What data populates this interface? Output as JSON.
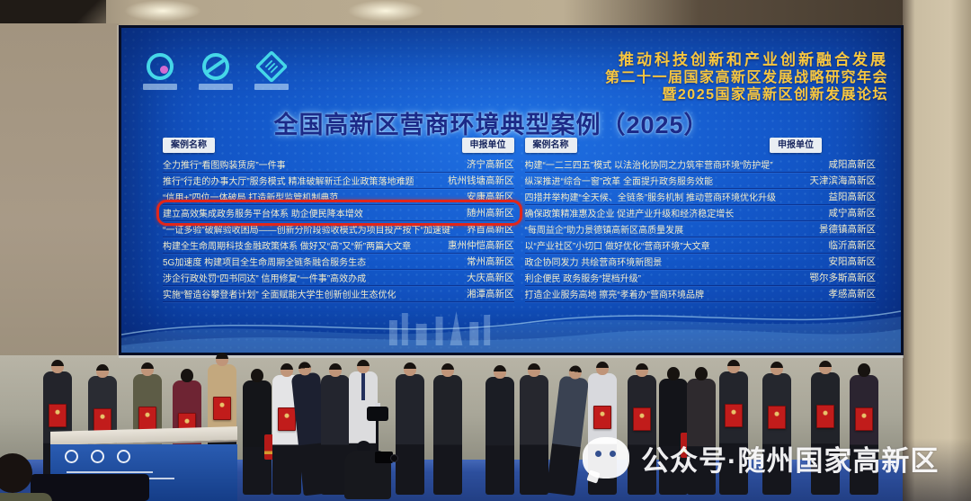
{
  "event": {
    "slogan_line1": "推动科技创新和产业创新融合发展",
    "slogan_line2": "第二十一届国家高新区发展战略研究年会",
    "slogan_line3": "暨2025国家高新区创新发展论坛",
    "title": "全国高新区营商环境典型案例（2025）",
    "logos": [
      "swirl-ribbon-logo",
      "globe-ribbon-logo",
      "diamond-emblem-logo"
    ]
  },
  "tables": {
    "col_case": "案例名称",
    "col_unit": "申报单位",
    "left": {
      "highlight_index": 3,
      "rows": [
        {
          "name": "全力推行“看图购装赁房”一件事",
          "unit": "济宁高新区"
        },
        {
          "name": "推行“行走的办事大厅”服务模式 精准破解新迁企业政策落地难题",
          "unit": "杭州钱塘高新区"
        },
        {
          "name": "“信用+”四位一体破局 打造新型监管机制典范",
          "unit": "安康高新区"
        },
        {
          "name": "建立高效集成政务服务平台体系 助企便民降本增效",
          "unit": "随州高新区"
        },
        {
          "name": "“一证多验”破解验收困局——创新分阶段验收模式为项目投产按下“加速键”",
          "unit": "界首高新区"
        },
        {
          "name": "构建全生命周期科技金融政策体系 做好又“高”又“新”两篇大文章",
          "unit": "惠州仲恺高新区"
        },
        {
          "name": "5G加速度 构建项目全生命周期全链条融合服务生态",
          "unit": "常州高新区"
        },
        {
          "name": "涉企行政处罚“四书同达” 信用修复“一件事”高效办成",
          "unit": "大庆高新区"
        },
        {
          "name": "实施“智造谷攀登者计划” 全面赋能大学生创新创业生态优化",
          "unit": "湘潭高新区"
        }
      ]
    },
    "right": {
      "rows": [
        {
          "name": "构建“一二三四五”模式 以法治化协同之力筑牢营商环境“防护堤”",
          "unit": "咸阳高新区"
        },
        {
          "name": "纵深推进“综合一窗”改革 全面提升政务服务效能",
          "unit": "天津滨海高新区"
        },
        {
          "name": "四措并举构建“全天候、全链条”服务机制 推动营商环境优化升级",
          "unit": "益阳高新区"
        },
        {
          "name": "确保政策精准惠及企业 促进产业升级和经济稳定增长",
          "unit": "咸宁高新区"
        },
        {
          "name": "“每周益企”助力景德镇高新区高质量发展",
          "unit": "景德镇高新区"
        },
        {
          "name": "以“产业社区”小切口 做好优化“营商环境”大文章",
          "unit": "临沂高新区"
        },
        {
          "name": "政企协同发力 共绘营商环境新图景",
          "unit": "安阳高新区"
        },
        {
          "name": "利企便民 政务服务“提档升级”",
          "unit": "鄂尔多斯高新区"
        },
        {
          "name": "打造企业服务高地 擦亮“孝着办”营商环境品牌",
          "unit": "孝感高新区"
        }
      ]
    }
  },
  "watermark": {
    "icon": "wechat-icon",
    "text": "公众号·随州国家高新区"
  },
  "colors": {
    "screen_blue": "#1459cb",
    "gold_text": "#f7c73f",
    "title_navy": "#1c2a88",
    "row_text": "#f2ecca",
    "highlight_red": "#e2261a",
    "cert_red": "#c11c1b"
  }
}
